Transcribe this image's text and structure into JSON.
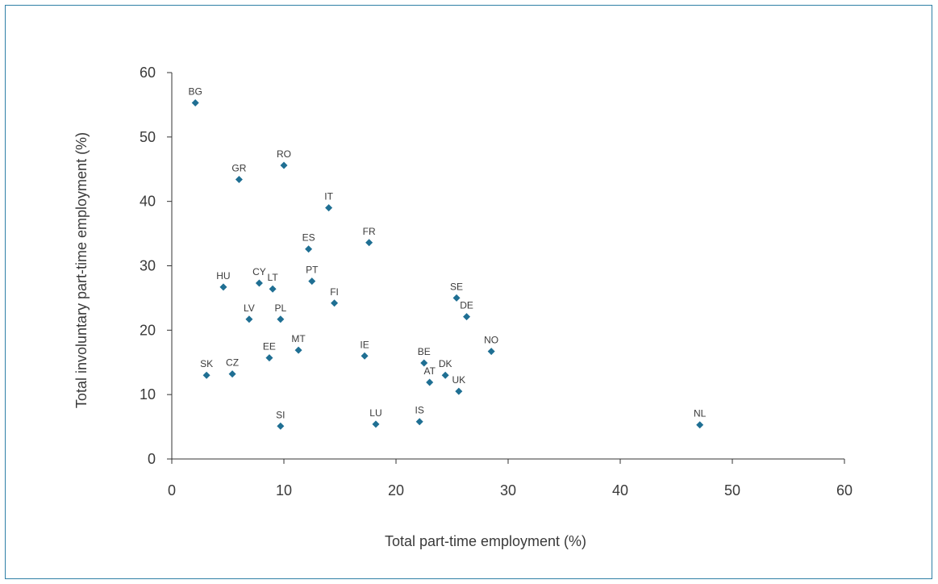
{
  "chart_data": {
    "type": "scatter",
    "title": "",
    "xlabel": "Total part-time employment (%)",
    "ylabel": "Total involuntary part-time employment (%)",
    "xlim": [
      0,
      60
    ],
    "ylim": [
      0,
      60
    ],
    "xticks": [
      "0",
      "10",
      "20",
      "30",
      "40",
      "50",
      "60"
    ],
    "yticks": [
      "0",
      "10",
      "20",
      "30",
      "40",
      "50",
      "60"
    ],
    "grid": false,
    "marker_color": "#1f6f93",
    "points": [
      {
        "label": "BG",
        "x": 2.1,
        "y": 55.3
      },
      {
        "label": "RO",
        "x": 10.0,
        "y": 45.6
      },
      {
        "label": "GR",
        "x": 6.0,
        "y": 43.4
      },
      {
        "label": "IT",
        "x": 14.0,
        "y": 39.0
      },
      {
        "label": "FR",
        "x": 17.6,
        "y": 33.6
      },
      {
        "label": "ES",
        "x": 12.2,
        "y": 32.6
      },
      {
        "label": "PT",
        "x": 12.5,
        "y": 27.6
      },
      {
        "label": "CY",
        "x": 7.8,
        "y": 27.3
      },
      {
        "label": "LT",
        "x": 9.0,
        "y": 26.4
      },
      {
        "label": "HU",
        "x": 4.6,
        "y": 26.7
      },
      {
        "label": "SE",
        "x": 25.4,
        "y": 25.0
      },
      {
        "label": "FI",
        "x": 14.5,
        "y": 24.2
      },
      {
        "label": "DE",
        "x": 26.3,
        "y": 22.1
      },
      {
        "label": "LV",
        "x": 6.9,
        "y": 21.7
      },
      {
        "label": "PL",
        "x": 9.7,
        "y": 21.7
      },
      {
        "label": "MT",
        "x": 11.3,
        "y": 16.9
      },
      {
        "label": "NO",
        "x": 28.5,
        "y": 16.7
      },
      {
        "label": "IE",
        "x": 17.2,
        "y": 16.0
      },
      {
        "label": "EE",
        "x": 8.7,
        "y": 15.7
      },
      {
        "label": "BE",
        "x": 22.5,
        "y": 14.9
      },
      {
        "label": "SK",
        "x": 3.1,
        "y": 13.0
      },
      {
        "label": "CZ",
        "x": 5.4,
        "y": 13.2
      },
      {
        "label": "DK",
        "x": 24.4,
        "y": 13.0
      },
      {
        "label": "AT",
        "x": 23.0,
        "y": 11.9
      },
      {
        "label": "UK",
        "x": 25.6,
        "y": 10.5
      },
      {
        "label": "IS",
        "x": 22.1,
        "y": 5.8
      },
      {
        "label": "LU",
        "x": 18.2,
        "y": 5.4
      },
      {
        "label": "SI",
        "x": 9.7,
        "y": 5.1
      },
      {
        "label": "NL",
        "x": 47.1,
        "y": 5.3
      }
    ]
  }
}
